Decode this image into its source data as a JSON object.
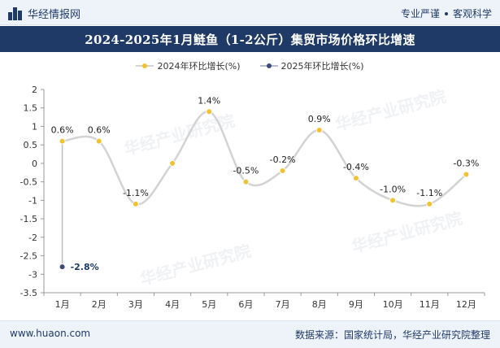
{
  "header": {
    "brand_name": "华经情报网",
    "slogan_left": "专业严谨",
    "slogan_right": "客观科学"
  },
  "title": "2024-2025年1月鲢鱼（1-2公斤）集贸市场价格环比增速",
  "footer": {
    "website": "www.huaon.com",
    "source": "数据来源：国家统计局，华经产业研究院整理"
  },
  "watermark": "华经产业研究院",
  "colors": {
    "header_bg": "#1f3a67",
    "series_2024_line": "#d3d3d3",
    "series_2024_marker": "#f2c12e",
    "series_2025_marker": "#3c4a7a",
    "series_2025_line": "#b8bccb"
  },
  "chart_data": {
    "type": "line",
    "title": "2024-2025年1月鲢鱼（1-2公斤）集贸市场价格环比增速",
    "xlabel": "",
    "ylabel": "",
    "categories": [
      "1月",
      "2月",
      "3月",
      "4月",
      "5月",
      "6月",
      "7月",
      "8月",
      "9月",
      "10月",
      "11月",
      "12月"
    ],
    "ylim": [
      -3.5,
      2
    ],
    "yticks": [
      "2",
      "1.5",
      "1",
      "0.5",
      "0",
      "-0.5",
      "-1",
      "-1.5",
      "-2",
      "-2.5",
      "-3",
      "-3.5"
    ],
    "grid": false,
    "legend_position": "top",
    "series": [
      {
        "name": "2024年环比增长(%)",
        "values": [
          0.6,
          0.6,
          -1.1,
          0,
          1.4,
          -0.5,
          -0.2,
          0.9,
          -0.4,
          -1.0,
          -1.1,
          -0.3
        ],
        "labels": [
          "0.6%",
          "0.6%",
          "-1.1%",
          null,
          "1.4%",
          "-0.5%",
          "-0.2%",
          "0.9%",
          "-0.4%",
          "-1.0%",
          "-1.1%",
          "-0.3%"
        ],
        "smooth": true
      },
      {
        "name": "2025年环比增长(%)",
        "values": [
          -2.8,
          null,
          null,
          null,
          null,
          null,
          null,
          null,
          null,
          null,
          null,
          null
        ],
        "labels": [
          "-2.8%",
          null,
          null,
          null,
          null,
          null,
          null,
          null,
          null,
          null,
          null,
          null
        ]
      }
    ]
  }
}
